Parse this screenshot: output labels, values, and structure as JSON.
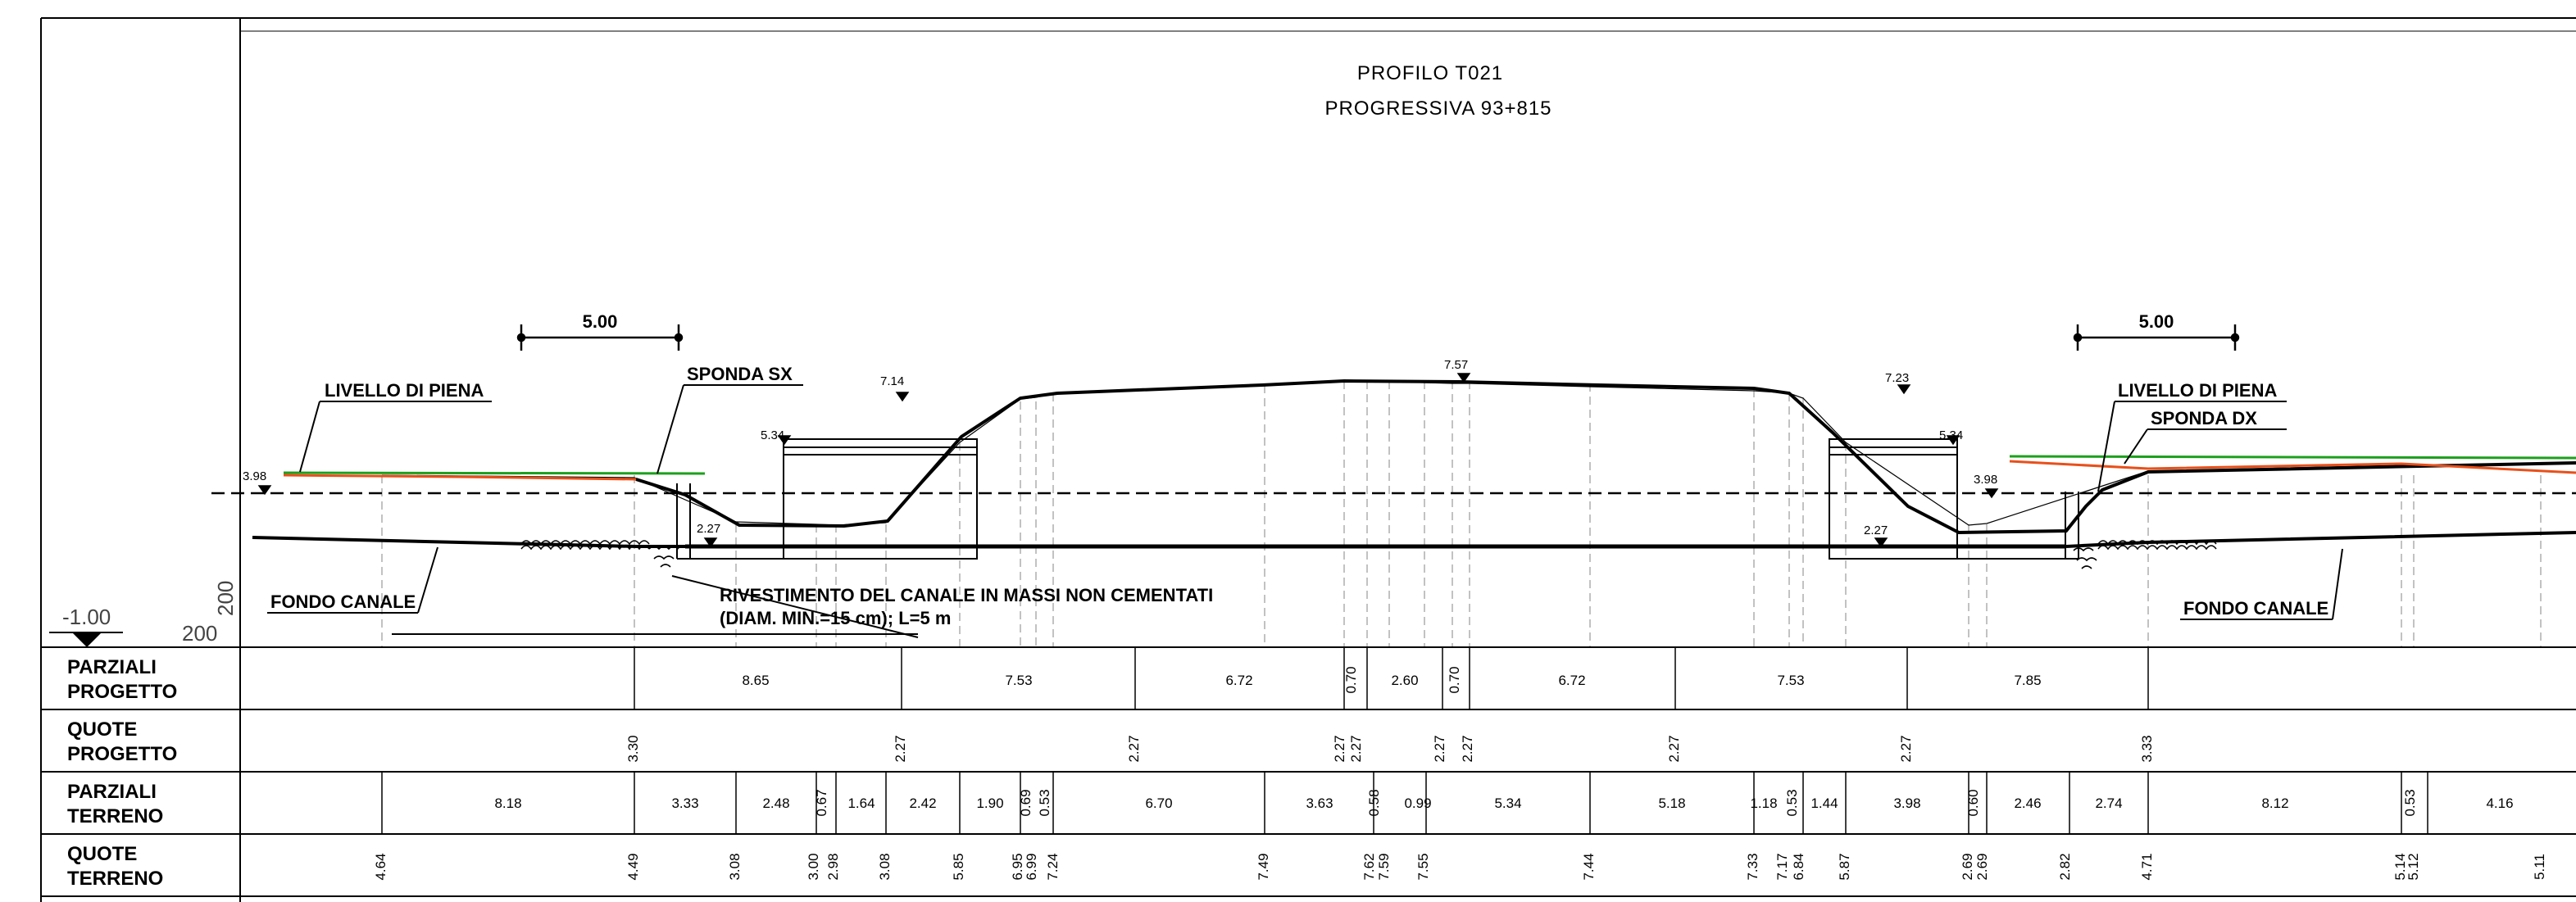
{
  "title": {
    "line1": "PROFILO   T021",
    "line2": "PROGRESSIVA   93+815"
  },
  "scale": {
    "left": "5.00",
    "right": "5.00"
  },
  "labels": {
    "livello_sx": "LIVELLO  DI  PIENA",
    "livello_dx": "LIVELLO  DI  PIENA",
    "sponda_sx": "SPONDA  SX",
    "sponda_dx": "SPONDA  DX",
    "fondo_sx": "FONDO  CANALE",
    "fondo_dx": "FONDO  CANALE",
    "rivestimento_1": "RIVESTIMENTO  DEL  CANALE  IN  MASSI  NON  CEMENTATI",
    "rivestimento_2": "(DIAM.  MIN.=15  cm);  L=5  m"
  },
  "datum": {
    "value": "-1.00",
    "scale_h": "200",
    "scale_v": "200"
  },
  "elevations": {
    "e398_l": "3.98",
    "e398_r": "3.98",
    "e714": "7.14",
    "e757": "7.57",
    "e723": "7.23",
    "e534_l": "5.34",
    "e534_r": "5.34",
    "e227_l": "2.27",
    "e227_r": "2.27"
  },
  "table": {
    "rows": [
      {
        "line1": "PARZIALI",
        "line2": "PROGETTO"
      },
      {
        "line1": "QUOTE",
        "line2": "PROGETTO"
      },
      {
        "line1": "PARZIALI",
        "line2": "TERRENO"
      },
      {
        "line1": "QUOTE",
        "line2": "TERRENO"
      }
    ],
    "parziali_progetto": [
      "8.65",
      "7.53",
      "6.72",
      "0.70",
      "2.60",
      "0.70",
      "6.72",
      "7.53",
      "7.85"
    ],
    "quote_progetto": [
      "3.30",
      "2.27",
      "2.27",
      "2.27",
      "2.27",
      "2.27",
      "2.27",
      "2.27",
      "2.27",
      "3.33"
    ],
    "parziali_terreno": [
      "8.18",
      "3.33",
      "2.48",
      "0.67",
      "1.64",
      "2.42",
      "1.90",
      "0.69",
      "0.53",
      "6.70",
      "3.63",
      "0.58",
      "0.99",
      "5.34",
      "5.18",
      "1.18",
      "0.53",
      "1.44",
      "3.98",
      "0.60",
      "2.46",
      "2.74",
      "8.12",
      "0.53",
      "4.16"
    ],
    "quote_terreno": [
      "4.64",
      "4.49",
      "3.08",
      "3.00",
      "2.98",
      "3.08",
      "5.85",
      "6.95",
      "6.99",
      "7.24",
      "7.49",
      "7.62",
      "7.59",
      "7.55",
      "7.44",
      "7.33",
      "7.17",
      "6.84",
      "5.87",
      "2.69",
      "2.69",
      "2.82",
      "4.71",
      "5.14",
      "5.12",
      "5.11"
    ]
  },
  "colors": {
    "water_level": "#1ca01c",
    "bank": "#e8501a",
    "lines": "#000000",
    "dashed": "#aaaaaa"
  }
}
